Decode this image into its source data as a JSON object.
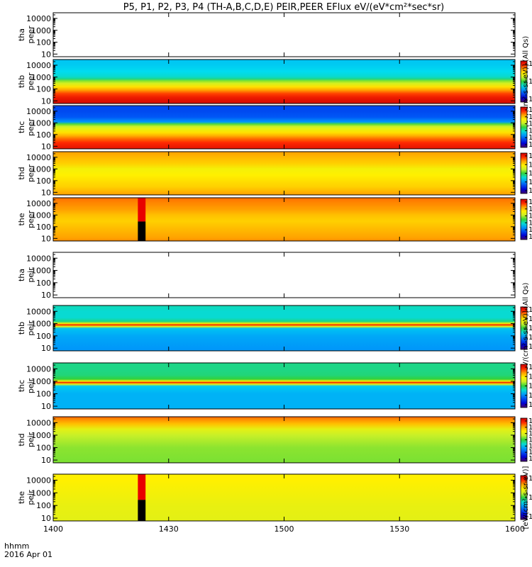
{
  "chart_data": {
    "type": "heatmap",
    "title": "P5, P1, P2, P3, P4 (TH-A,B,C,D,E) PEIR,PEER EFlux eV/(eV*cm²*sec*sr)",
    "x_axis": {
      "ticks": [
        "1400",
        "1430",
        "1500",
        "1530",
        "1600"
      ],
      "range": [
        "1400",
        "1600"
      ],
      "label_line1": "hhmm",
      "label_line2": "2016 Apr 01"
    },
    "y_axis": {
      "scale": "log",
      "ticks": [
        "10",
        "100",
        "1000",
        "10000"
      ],
      "range": [
        6,
        30000
      ]
    },
    "colorbar_scale": "log",
    "panels": [
      {
        "id": "tha_peer",
        "label_line1": "tha",
        "label_line2": "peer",
        "empty": true,
        "colorbar": false,
        "ticks": []
      },
      {
        "id": "thb_peer",
        "label_line1": "thb",
        "label_line2": "peer",
        "empty": false,
        "colorbar": true,
        "ticks": [
          "10⁴",
          "10⁵",
          "10⁶"
        ],
        "unit": "[eV/(cm²-s-sr-eV)] (All Qs)",
        "profile": [
          [
            6,
            0.97
          ],
          [
            10,
            0.96
          ],
          [
            20,
            0.93
          ],
          [
            40,
            0.88
          ],
          [
            80,
            0.8
          ],
          [
            150,
            0.72
          ],
          [
            300,
            0.62
          ],
          [
            500,
            0.55
          ],
          [
            700,
            0.45
          ],
          [
            900,
            0.42
          ],
          [
            1200,
            0.4
          ],
          [
            3000,
            0.38
          ],
          [
            10000,
            0.36
          ],
          [
            30000,
            0.35
          ]
        ]
      },
      {
        "id": "thc_peer",
        "label_line1": "thc",
        "label_line2": "peer",
        "empty": false,
        "colorbar": true,
        "ticks": [
          "10¹",
          "10²",
          "10³",
          "10⁴",
          "10⁵",
          "10⁶"
        ],
        "profile": [
          [
            6,
            0.95
          ],
          [
            10,
            0.93
          ],
          [
            20,
            0.9
          ],
          [
            40,
            0.85
          ],
          [
            80,
            0.78
          ],
          [
            150,
            0.72
          ],
          [
            300,
            0.66
          ],
          [
            500,
            0.6
          ],
          [
            800,
            0.52
          ],
          [
            1200,
            0.3
          ],
          [
            3000,
            0.22
          ],
          [
            10000,
            0.2
          ],
          [
            30000,
            0.2
          ]
        ]
      },
      {
        "id": "thd_peer",
        "label_line1": "thd",
        "label_line2": "peer",
        "empty": false,
        "colorbar": true,
        "ticks": [
          "10²",
          "10³",
          "10⁴",
          "10⁵",
          "10⁶"
        ],
        "profile": [
          [
            6,
            0.8
          ],
          [
            10,
            0.78
          ],
          [
            30,
            0.74
          ],
          [
            100,
            0.72
          ],
          [
            300,
            0.7
          ],
          [
            1000,
            0.68
          ],
          [
            3000,
            0.74
          ],
          [
            10000,
            0.77
          ],
          [
            30000,
            0.8
          ]
        ]
      },
      {
        "id": "the_peer",
        "label_line1": "the",
        "label_line2": "peer",
        "empty": false,
        "colorbar": true,
        "ticks": [
          "10²",
          "10³",
          "10⁴",
          "10⁵",
          "10⁶",
          "10⁷"
        ],
        "gap_from": "1422",
        "gap_to": "1424",
        "profile": [
          [
            6,
            0.82
          ],
          [
            10,
            0.8
          ],
          [
            30,
            0.78
          ],
          [
            100,
            0.76
          ],
          [
            300,
            0.74
          ],
          [
            1000,
            0.76
          ],
          [
            3000,
            0.8
          ],
          [
            10000,
            0.82
          ],
          [
            30000,
            0.84
          ]
        ]
      },
      {
        "id": "tha_peir",
        "label_line1": "tha",
        "label_line2": "peir",
        "empty": true,
        "colorbar": false,
        "ticks": []
      },
      {
        "id": "thb_peir",
        "label_line1": "thb",
        "label_line2": "peir",
        "empty": false,
        "colorbar": true,
        "ticks": [
          "10²",
          "10³",
          "10⁴",
          "10⁵",
          "10⁶"
        ],
        "unit": "[eV/(cm²-s-sr-eV)] (All Qs)",
        "profile": [
          [
            6,
            0.3
          ],
          [
            10,
            0.3
          ],
          [
            100,
            0.32
          ],
          [
            400,
            0.35
          ],
          [
            600,
            0.68
          ],
          [
            800,
            0.93
          ],
          [
            1000,
            0.7
          ],
          [
            1500,
            0.45
          ],
          [
            3000,
            0.4
          ],
          [
            10000,
            0.4
          ],
          [
            30000,
            0.42
          ]
        ]
      },
      {
        "id": "thc_peir",
        "label_line1": "thc",
        "label_line2": "peir",
        "empty": false,
        "colorbar": true,
        "ticks": [
          "10²",
          "10³",
          "10⁴",
          "10⁵",
          "10⁶"
        ],
        "profile": [
          [
            6,
            0.33
          ],
          [
            10,
            0.33
          ],
          [
            100,
            0.33
          ],
          [
            400,
            0.36
          ],
          [
            600,
            0.68
          ],
          [
            800,
            0.93
          ],
          [
            1000,
            0.7
          ],
          [
            1500,
            0.5
          ],
          [
            3000,
            0.46
          ],
          [
            10000,
            0.45
          ],
          [
            30000,
            0.45
          ]
        ]
      },
      {
        "id": "thd_peir",
        "label_line1": "thd",
        "label_line2": "peir",
        "empty": false,
        "colorbar": true,
        "ticks": [
          "10¹",
          "10²",
          "10³",
          "10⁴",
          "10⁵",
          "10⁶",
          "10⁷"
        ],
        "profile": [
          [
            6,
            0.55
          ],
          [
            10,
            0.55
          ],
          [
            100,
            0.56
          ],
          [
            1000,
            0.6
          ],
          [
            3000,
            0.65
          ],
          [
            8000,
            0.76
          ],
          [
            20000,
            0.82
          ],
          [
            30000,
            0.85
          ]
        ]
      },
      {
        "id": "the_peir",
        "label_line1": "the",
        "label_line2": "peir",
        "empty": false,
        "colorbar": true,
        "ticks": [
          "10²",
          "10⁴",
          "10⁶"
        ],
        "unit": "[eV/(cm²-s-sr-eV)]",
        "gap_from": "1422",
        "gap_to": "1424",
        "profile": [
          [
            6,
            0.65
          ],
          [
            10,
            0.65
          ],
          [
            100,
            0.66
          ],
          [
            1000,
            0.68
          ],
          [
            10000,
            0.7
          ],
          [
            30000,
            0.7
          ]
        ]
      }
    ]
  }
}
